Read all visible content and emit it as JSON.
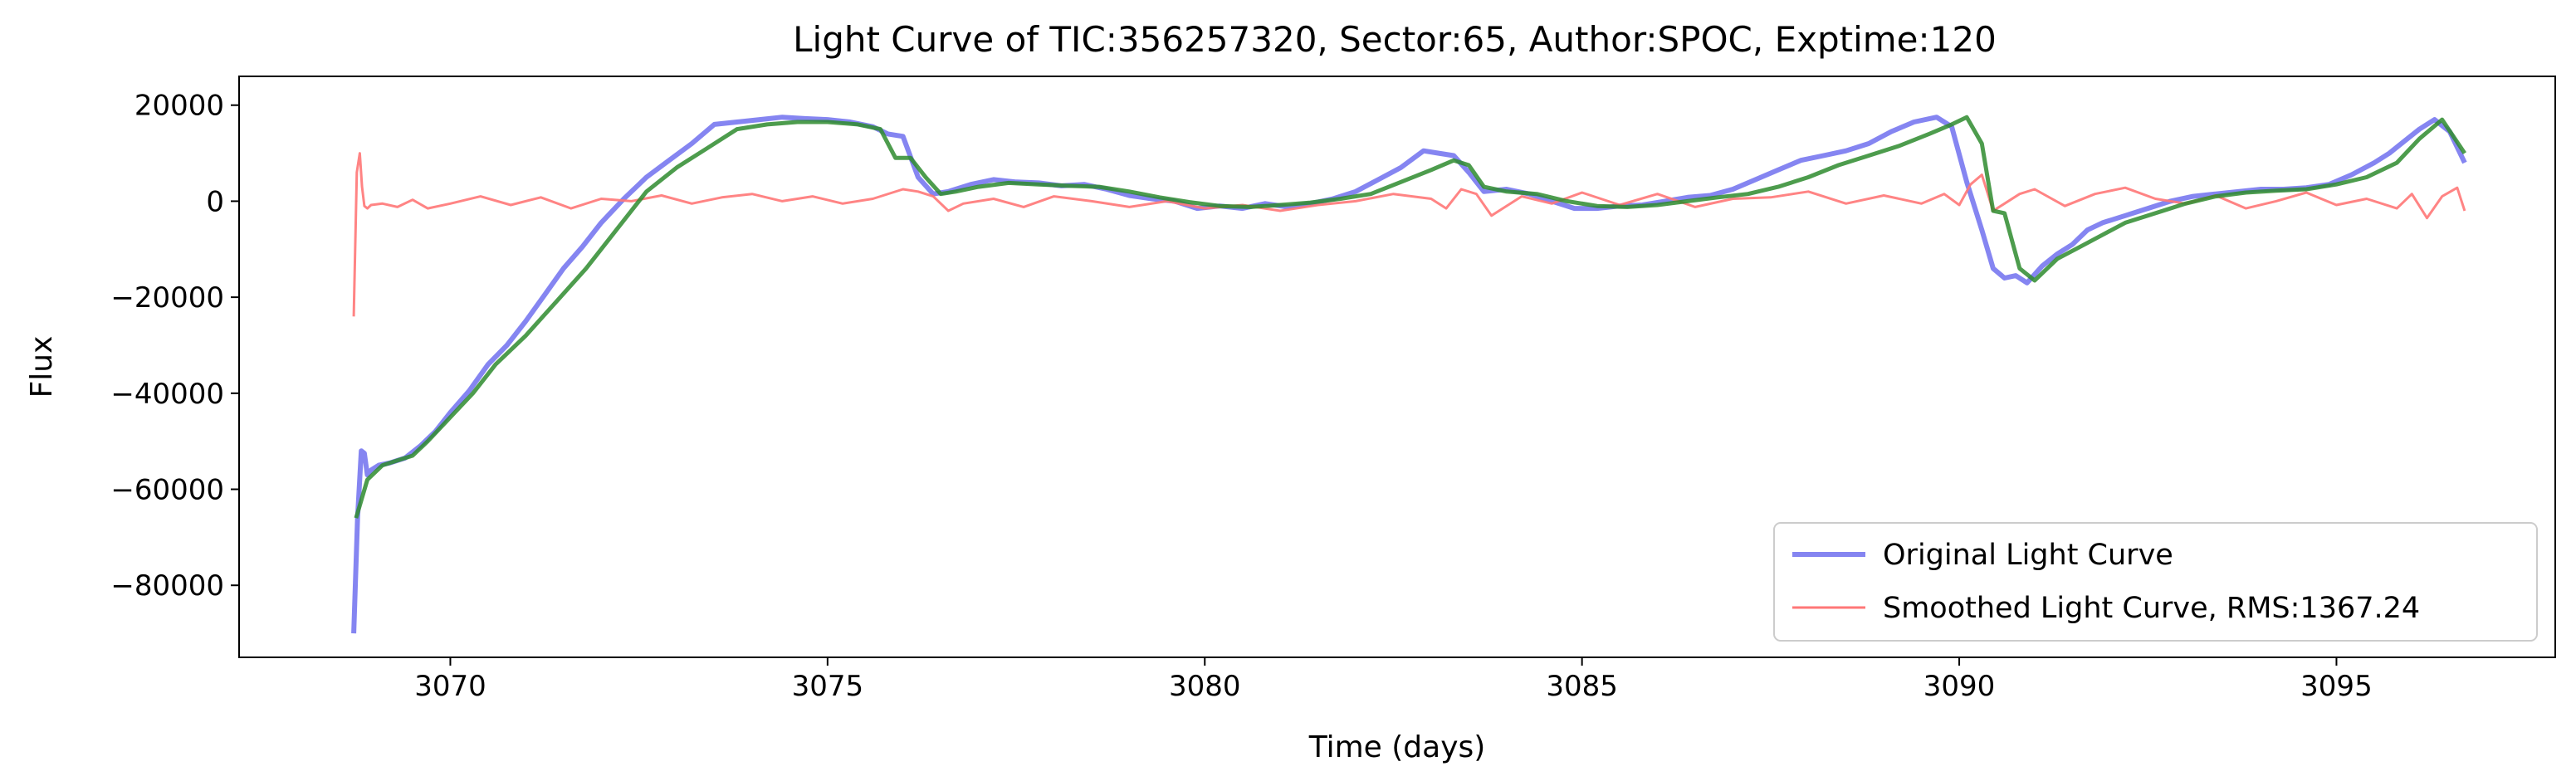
{
  "chart_data": {
    "type": "line",
    "title": "Light Curve of TIC:356257320, Sector:65, Author:SPOC, Exptime:120",
    "xlabel": "Time (days)",
    "ylabel": "Flux",
    "xlim": [
      3067.2,
      3097.9
    ],
    "ylim": [
      -95000,
      26000
    ],
    "xticks": [
      3070,
      3075,
      3080,
      3085,
      3090,
      3095
    ],
    "yticks": [
      20000,
      0,
      -20000,
      -40000,
      -60000,
      -80000
    ],
    "xtick_labels": [
      "3070",
      "3075",
      "3080",
      "3085",
      "3090",
      "3095"
    ],
    "ytick_labels": [
      "20000",
      "0",
      "−20000",
      "−40000",
      "−60000",
      "−80000"
    ],
    "grid": false,
    "legend_position": "lower right",
    "legend": [
      "Original Light Curve",
      "Smoothed Light Curve, RMS:1367.24"
    ],
    "series": [
      {
        "name": "Original Light Curve",
        "color": "#6666ee",
        "x": [
          3068.72,
          3068.77,
          3068.82,
          3068.86,
          3068.9,
          3068.95,
          3069.05,
          3069.2,
          3069.4,
          3069.6,
          3069.8,
          3070.0,
          3070.25,
          3070.5,
          3070.75,
          3071.0,
          3071.25,
          3071.5,
          3071.75,
          3072.0,
          3072.3,
          3072.6,
          3072.9,
          3073.2,
          3073.5,
          3073.8,
          3074.1,
          3074.4,
          3074.7,
          3075.0,
          3075.3,
          3075.6,
          3075.8,
          3076.0,
          3076.2,
          3076.4,
          3076.6,
          3076.9,
          3077.2,
          3077.5,
          3077.8,
          3078.1,
          3078.4,
          3078.7,
          3079.0,
          3079.3,
          3079.6,
          3079.9,
          3080.2,
          3080.5,
          3080.8,
          3081.1,
          3081.4,
          3081.7,
          3082.0,
          3082.3,
          3082.6,
          3082.9,
          3083.1,
          3083.3,
          3083.5,
          3083.7,
          3084.0,
          3084.3,
          3084.6,
          3084.9,
          3085.2,
          3085.5,
          3085.8,
          3086.1,
          3086.4,
          3086.7,
          3087.0,
          3087.3,
          3087.6,
          3087.9,
          3088.2,
          3088.5,
          3088.8,
          3089.1,
          3089.4,
          3089.7,
          3089.9,
          3090.1,
          3090.3,
          3090.45,
          3090.6,
          3090.75,
          3090.9,
          3091.1,
          3091.3,
          3091.5,
          3091.7,
          3091.9,
          3092.2,
          3092.5,
          3092.8,
          3093.1,
          3093.4,
          3093.7,
          3094.0,
          3094.3,
          3094.6,
          3094.9,
          3095.2,
          3095.5,
          3095.7,
          3095.9,
          3096.1,
          3096.3,
          3096.5,
          3096.7
        ],
        "y": [
          -90000,
          -66000,
          -52000,
          -52500,
          -57000,
          -56000,
          -55000,
          -54500,
          -53500,
          -51000,
          -48000,
          -44000,
          -39500,
          -34000,
          -30000,
          -25000,
          -19500,
          -14000,
          -9500,
          -4500,
          500,
          5000,
          8500,
          12000,
          16000,
          16500,
          17000,
          17500,
          17200,
          17000,
          16500,
          15500,
          14000,
          13500,
          5000,
          1500,
          2000,
          3500,
          4500,
          4000,
          3800,
          3200,
          3500,
          2500,
          1200,
          500,
          0,
          -1500,
          -1000,
          -1500,
          -500,
          -1200,
          -500,
          500,
          2000,
          4500,
          7000,
          10500,
          10000,
          9500,
          6000,
          2000,
          2500,
          1500,
          0,
          -1500,
          -1500,
          -1000,
          -800,
          0,
          800,
          1200,
          2500,
          4500,
          6500,
          8500,
          9500,
          10500,
          12000,
          14500,
          16500,
          17500,
          15500,
          4000,
          -6000,
          -14000,
          -16000,
          -15500,
          -17000,
          -13500,
          -11000,
          -9000,
          -6000,
          -4500,
          -3000,
          -1500,
          0,
          1000,
          1500,
          2000,
          2500,
          2500,
          2800,
          3500,
          5500,
          8000,
          10000,
          12500,
          15000,
          17000,
          14500,
          8000
        ]
      },
      {
        "name": "Smoothed Light Curve, RMS:1367.24",
        "color": "#ff7777",
        "x": [
          3068.72,
          3068.76,
          3068.8,
          3068.83,
          3068.86,
          3068.9,
          3068.95,
          3069.1,
          3069.3,
          3069.5,
          3069.7,
          3070.0,
          3070.4,
          3070.8,
          3071.2,
          3071.6,
          3072.0,
          3072.4,
          3072.8,
          3073.2,
          3073.6,
          3074.0,
          3074.4,
          3074.8,
          3075.2,
          3075.6,
          3076.0,
          3076.2,
          3076.4,
          3076.6,
          3076.8,
          3077.2,
          3077.6,
          3078.0,
          3078.5,
          3079.0,
          3079.5,
          3080.0,
          3080.5,
          3081.0,
          3081.5,
          3082.0,
          3082.5,
          3083.0,
          3083.2,
          3083.4,
          3083.6,
          3083.8,
          3084.2,
          3084.6,
          3085.0,
          3085.5,
          3086.0,
          3086.5,
          3087.0,
          3087.5,
          3088.0,
          3088.5,
          3089.0,
          3089.5,
          3089.8,
          3090.0,
          3090.15,
          3090.3,
          3090.45,
          3090.6,
          3090.8,
          3091.0,
          3091.4,
          3091.8,
          3092.2,
          3092.6,
          3093.0,
          3093.4,
          3093.8,
          3094.2,
          3094.6,
          3095.0,
          3095.4,
          3095.8,
          3096.0,
          3096.2,
          3096.4,
          3096.6,
          3096.7
        ],
        "y": [
          -24000,
          6000,
          10000,
          3000,
          -1000,
          -1500,
          -800,
          -500,
          -1200,
          300,
          -1500,
          -500,
          1000,
          -800,
          800,
          -1500,
          500,
          0,
          1200,
          -500,
          800,
          1500,
          0,
          1000,
          -500,
          500,
          2500,
          2000,
          1000,
          -2000,
          -500,
          500,
          -1200,
          1000,
          0,
          -1200,
          0,
          -1500,
          -800,
          -2000,
          -800,
          0,
          1500,
          500,
          -1500,
          2500,
          1500,
          -3000,
          1000,
          -500,
          1800,
          -800,
          1500,
          -1200,
          500,
          800,
          2000,
          -500,
          1200,
          -500,
          1500,
          -800,
          3500,
          5500,
          -2000,
          -500,
          1500,
          2500,
          -1000,
          1500,
          2800,
          500,
          -500,
          1200,
          -1500,
          0,
          1800,
          -800,
          500,
          -1500,
          1500,
          -3500,
          1000,
          2800,
          -2000
        ]
      },
      {
        "name": "",
        "color": "#2e8b2e",
        "x": [
          3068.75,
          3068.9,
          3069.1,
          3069.3,
          3069.5,
          3069.7,
          3070.0,
          3070.3,
          3070.6,
          3071.0,
          3071.4,
          3071.8,
          3072.2,
          3072.6,
          3073.0,
          3073.4,
          3073.8,
          3074.2,
          3074.6,
          3075.0,
          3075.4,
          3075.7,
          3075.9,
          3076.1,
          3076.3,
          3076.5,
          3076.7,
          3077.0,
          3077.4,
          3077.8,
          3078.2,
          3078.6,
          3079.0,
          3079.4,
          3079.8,
          3080.2,
          3080.6,
          3081.0,
          3081.4,
          3081.8,
          3082.2,
          3082.6,
          3083.0,
          3083.3,
          3083.5,
          3083.7,
          3084.0,
          3084.4,
          3084.8,
          3085.2,
          3085.6,
          3086.0,
          3086.4,
          3086.8,
          3087.2,
          3087.6,
          3088.0,
          3088.4,
          3088.8,
          3089.2,
          3089.6,
          3089.9,
          3090.1,
          3090.3,
          3090.45,
          3090.6,
          3090.8,
          3091.0,
          3091.3,
          3091.6,
          3091.9,
          3092.2,
          3092.6,
          3093.0,
          3093.4,
          3093.8,
          3094.2,
          3094.6,
          3095.0,
          3095.4,
          3095.8,
          3096.1,
          3096.4,
          3096.7
        ],
        "y": [
          -66000,
          -58000,
          -55000,
          -54000,
          -53000,
          -50000,
          -45000,
          -40000,
          -34000,
          -28000,
          -21000,
          -14000,
          -6000,
          2000,
          7000,
          11000,
          15000,
          16000,
          16500,
          16500,
          16000,
          15000,
          9000,
          9000,
          5000,
          1500,
          2000,
          3000,
          3800,
          3500,
          3200,
          3000,
          2000,
          800,
          -200,
          -1000,
          -1200,
          -800,
          -300,
          500,
          1500,
          4000,
          6500,
          8500,
          7500,
          3000,
          2000,
          1500,
          0,
          -1000,
          -1200,
          -800,
          0,
          800,
          1500,
          3000,
          5000,
          7500,
          9500,
          11500,
          14000,
          16000,
          17500,
          12000,
          -2000,
          -2500,
          -14000,
          -16500,
          -12000,
          -9500,
          -7000,
          -4500,
          -2500,
          -500,
          1000,
          1800,
          2200,
          2500,
          3500,
          5000,
          8000,
          13000,
          17000,
          10000
        ]
      }
    ]
  }
}
